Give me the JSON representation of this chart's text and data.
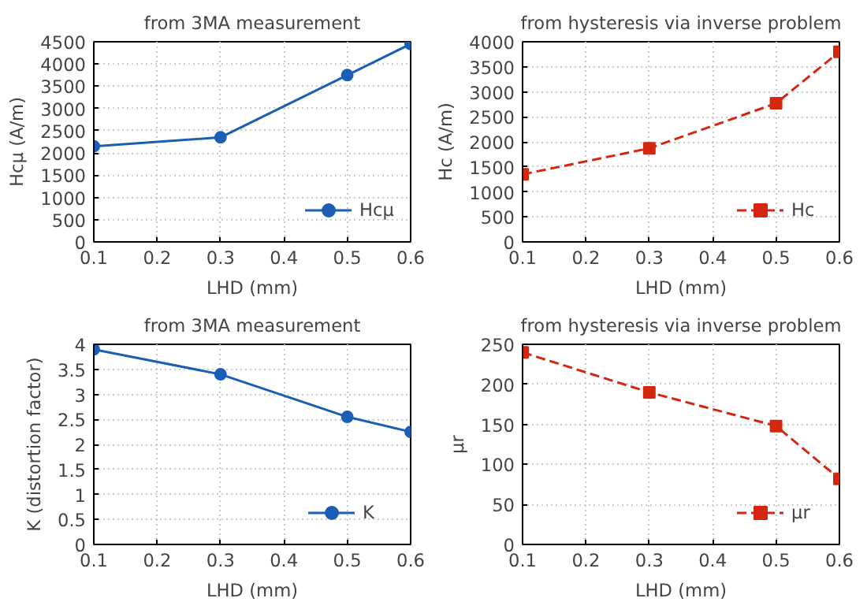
{
  "chart_data": [
    {
      "type": "line",
      "title": "from 3MA measurement",
      "xlabel": "LHD (mm)",
      "ylabel": "Hcμ (A/m)",
      "x": [
        0.1,
        0.3,
        0.5,
        0.6
      ],
      "xlim": [
        0.1,
        0.6
      ],
      "xticks": [
        0.1,
        0.2,
        0.3,
        0.4,
        0.5,
        0.6
      ],
      "ylim": [
        0,
        4500
      ],
      "yticks": [
        0,
        500,
        1000,
        1500,
        2000,
        2500,
        3000,
        3500,
        4000,
        4500
      ],
      "grid": true,
      "legend": "bottom right",
      "marker": "circle",
      "line_style": "solid",
      "series": [
        {
          "name": "Hcμ",
          "color": "#1a5fb4",
          "values": [
            2150,
            2350,
            3750,
            4450
          ]
        }
      ]
    },
    {
      "type": "line",
      "title": "from hysteresis via inverse problem",
      "xlabel": "LHD (mm)",
      "ylabel": "Hc (A/m)",
      "x": [
        0.1,
        0.3,
        0.5,
        0.6
      ],
      "xlim": [
        0.1,
        0.6
      ],
      "xticks": [
        0.1,
        0.2,
        0.3,
        0.4,
        0.5,
        0.6
      ],
      "ylim": [
        0,
        4000
      ],
      "yticks": [
        0,
        500,
        1000,
        1500,
        2000,
        2500,
        3000,
        3500,
        4000
      ],
      "grid": true,
      "legend": "bottom right",
      "marker": "square",
      "line_style": "dashed",
      "series": [
        {
          "name": "Hc",
          "color": "#d4270f",
          "values": [
            1350,
            1870,
            2770,
            3800
          ]
        }
      ]
    },
    {
      "type": "line",
      "title": "from 3MA measurement",
      "xlabel": "LHD (mm)",
      "ylabel": "K (distortion factor)",
      "x": [
        0.1,
        0.3,
        0.5,
        0.6
      ],
      "xlim": [
        0.1,
        0.6
      ],
      "xticks": [
        0.1,
        0.2,
        0.3,
        0.4,
        0.5,
        0.6
      ],
      "ylim": [
        0,
        4
      ],
      "yticks": [
        0,
        0.5,
        1,
        1.5,
        2,
        2.5,
        3,
        3.5,
        4
      ],
      "grid": true,
      "legend": "bottom right",
      "marker": "circle",
      "line_style": "solid",
      "series": [
        {
          "name": "K",
          "color": "#1a5fb4",
          "values": [
            3.9,
            3.4,
            2.55,
            2.25
          ]
        }
      ]
    },
    {
      "type": "line",
      "title": "from hysteresis via inverse problem",
      "xlabel": "LHD (mm)",
      "ylabel": "μr",
      "x": [
        0.1,
        0.3,
        0.5,
        0.6
      ],
      "xlim": [
        0.1,
        0.6
      ],
      "xticks": [
        0.1,
        0.2,
        0.3,
        0.4,
        0.5,
        0.6
      ],
      "ylim": [
        0,
        250
      ],
      "yticks": [
        0,
        50,
        100,
        150,
        200,
        250
      ],
      "grid": true,
      "legend": "bottom right",
      "marker": "square",
      "line_style": "dashed",
      "series": [
        {
          "name": "μr",
          "color": "#d4270f",
          "values": [
            240,
            190,
            148,
            82
          ]
        }
      ]
    }
  ]
}
